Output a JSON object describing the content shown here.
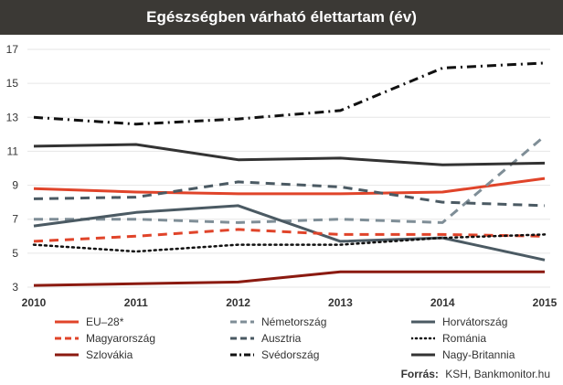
{
  "chart_data": {
    "type": "line",
    "title": "Egészségben várható élettartam (év)",
    "x": [
      2010,
      2011,
      2012,
      2013,
      2014,
      2015
    ],
    "ylim": [
      3,
      17
    ],
    "yticks": [
      3,
      5,
      7,
      9,
      11,
      13,
      15,
      17
    ],
    "grid": true,
    "legend_position": "bottom",
    "series": [
      {
        "name": "EU–28*",
        "values": [
          8.8,
          8.6,
          8.5,
          8.5,
          8.6,
          9.4
        ],
        "color": "#e0442a",
        "style": "solid"
      },
      {
        "name": "Németország",
        "values": [
          7.0,
          7.0,
          6.8,
          7.0,
          6.8,
          11.9
        ],
        "color": "#7f8e97",
        "style": "dashed"
      },
      {
        "name": "Horvátország",
        "values": [
          6.6,
          7.4,
          7.8,
          5.7,
          5.9,
          4.6
        ],
        "color": "#4b5a63",
        "style": "solid"
      },
      {
        "name": "Magyarország",
        "values": [
          5.7,
          6.0,
          6.4,
          6.1,
          6.1,
          6.0
        ],
        "color": "#e0442a",
        "style": "dashed"
      },
      {
        "name": "Ausztria",
        "values": [
          8.2,
          8.3,
          9.2,
          8.9,
          8.0,
          7.8
        ],
        "color": "#4b5a63",
        "style": "dashed"
      },
      {
        "name": "Románia",
        "values": [
          5.5,
          5.1,
          5.5,
          5.5,
          5.9,
          6.1
        ],
        "color": "#111111",
        "style": "dotted"
      },
      {
        "name": "Szlovákia",
        "values": [
          3.1,
          3.2,
          3.3,
          3.9,
          3.9,
          3.9
        ],
        "color": "#8b1a10",
        "style": "solid"
      },
      {
        "name": "Svédország",
        "values": [
          13.0,
          12.6,
          12.9,
          13.4,
          15.9,
          16.2
        ],
        "color": "#111111",
        "style": "dashdot"
      },
      {
        "name": "Nagy-Britannia",
        "values": [
          11.3,
          11.4,
          10.5,
          10.6,
          10.2,
          10.3
        ],
        "color": "#333333",
        "style": "solid"
      }
    ]
  },
  "source": {
    "label": "Forrás:",
    "text": "KSH, Bankmonitor.hu"
  }
}
